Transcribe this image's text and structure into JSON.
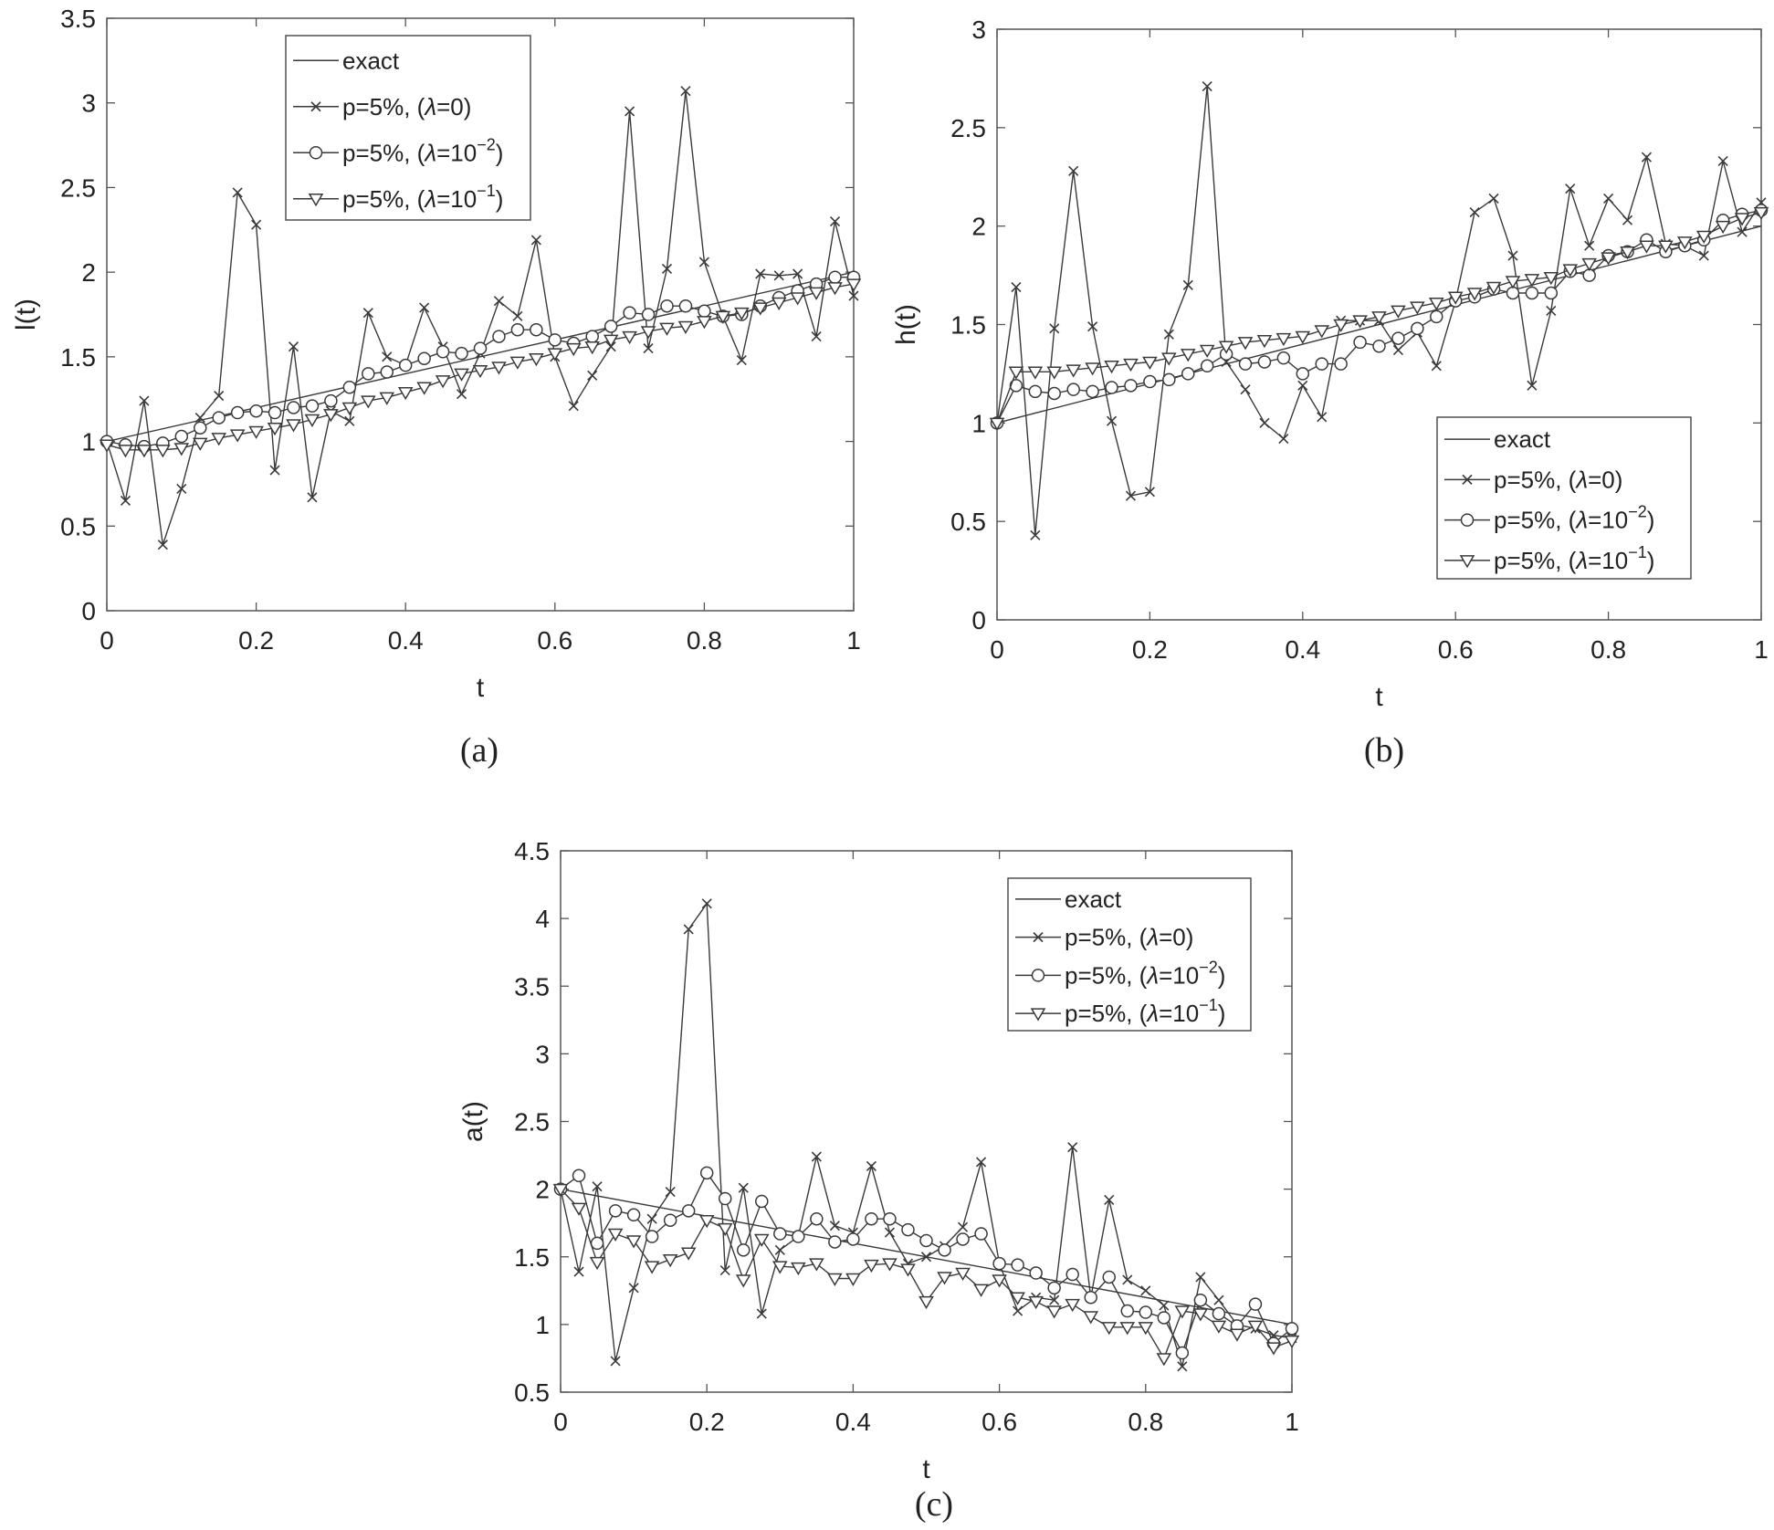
{
  "figure": {
    "captions": [
      "(a)",
      "(b)",
      "(c)"
    ]
  },
  "legend_symbols": {
    "lambda": "λ",
    "dash": "−"
  },
  "chart_data": [
    {
      "id": "a",
      "type": "line",
      "caption": "(a)",
      "xlabel": "t",
      "ylabel": "l(t)",
      "xlim": [
        0,
        1
      ],
      "ylim": [
        0,
        3.5
      ],
      "xticks": [
        0,
        0.2,
        0.4,
        0.6,
        0.8,
        1
      ],
      "xtick_labels": [
        "0",
        "0.2",
        "0.4",
        "0.6",
        "0.8",
        "1"
      ],
      "yticks": [
        0,
        0.5,
        1,
        1.5,
        2,
        2.5,
        3,
        3.5
      ],
      "ytick_labels": [
        "0",
        "0.5",
        "1",
        "1.5",
        "2",
        "2.5",
        "3",
        "3.5"
      ],
      "legend_position": "top-center",
      "series": [
        {
          "name": "exact",
          "label": "exact",
          "marker": "none",
          "x": [
            0,
            1
          ],
          "values": [
            1,
            2
          ]
        },
        {
          "name": "p=5%, (λ=0)",
          "label_pre": "p=5%, (",
          "label_mid": "=0)",
          "exp": "",
          "label_post": "",
          "marker": "x",
          "values": [
            1.0,
            0.65,
            1.24,
            0.39,
            0.72,
            1.14,
            1.27,
            2.47,
            2.28,
            0.83,
            1.56,
            0.67,
            1.18,
            1.12,
            1.76,
            1.5,
            1.45,
            1.79,
            1.56,
            1.28,
            1.52,
            1.83,
            1.74,
            2.19,
            1.5,
            1.21,
            1.39,
            1.56,
            2.95,
            1.55,
            2.02,
            3.07,
            2.06,
            1.74,
            1.48,
            1.99,
            1.98,
            1.99,
            1.62,
            2.3,
            1.86
          ]
        },
        {
          "name": "p=5%, (λ=10^-2)",
          "label_pre": "p=5%, (",
          "label_mid": "=10",
          "exp": "-2",
          "label_post": ")",
          "marker": "o",
          "values": [
            1.0,
            0.98,
            0.97,
            0.99,
            1.03,
            1.08,
            1.14,
            1.17,
            1.18,
            1.17,
            1.2,
            1.21,
            1.24,
            1.32,
            1.4,
            1.41,
            1.45,
            1.49,
            1.53,
            1.52,
            1.55,
            1.62,
            1.66,
            1.66,
            1.6,
            1.58,
            1.62,
            1.68,
            1.76,
            1.75,
            1.8,
            1.8,
            1.77,
            1.74,
            1.75,
            1.8,
            1.85,
            1.89,
            1.93,
            1.97,
            1.97
          ]
        },
        {
          "name": "p=5%, (λ=10^-1)",
          "label_pre": "p=5%, (",
          "label_mid": "=10",
          "exp": "-1",
          "label_post": ")",
          "marker": "v",
          "values": [
            0.98,
            0.95,
            0.95,
            0.95,
            0.96,
            0.99,
            1.02,
            1.04,
            1.06,
            1.08,
            1.1,
            1.13,
            1.16,
            1.2,
            1.24,
            1.26,
            1.29,
            1.32,
            1.36,
            1.4,
            1.42,
            1.44,
            1.47,
            1.49,
            1.52,
            1.55,
            1.56,
            1.6,
            1.62,
            1.65,
            1.67,
            1.68,
            1.71,
            1.74,
            1.76,
            1.79,
            1.82,
            1.85,
            1.88,
            1.91,
            1.93
          ]
        }
      ]
    },
    {
      "id": "b",
      "type": "line",
      "caption": "(b)",
      "xlabel": "t",
      "ylabel": "h(t)",
      "xlim": [
        0,
        1
      ],
      "ylim": [
        0,
        3
      ],
      "xticks": [
        0,
        0.2,
        0.4,
        0.6,
        0.8,
        1
      ],
      "xtick_labels": [
        "0",
        "0.2",
        "0.4",
        "0.6",
        "0.8",
        "1"
      ],
      "yticks": [
        0,
        0.5,
        1,
        1.5,
        2,
        2.5,
        3
      ],
      "ytick_labels": [
        "0",
        "0.5",
        "1",
        "1.5",
        "2",
        "2.5",
        "3"
      ],
      "legend_position": "bottom-right",
      "series": [
        {
          "name": "exact",
          "label": "exact",
          "marker": "none",
          "x": [
            0,
            1
          ],
          "values": [
            1,
            2
          ]
        },
        {
          "name": "p=5%, (λ=0)",
          "label_pre": "p=5%, (",
          "label_mid": "=0)",
          "exp": "",
          "label_post": "",
          "marker": "x",
          "values": [
            1.0,
            1.69,
            0.43,
            1.48,
            2.28,
            1.49,
            1.01,
            0.63,
            0.65,
            1.45,
            1.7,
            2.71,
            1.31,
            1.17,
            1.0,
            0.92,
            1.19,
            1.03,
            1.52,
            1.52,
            1.52,
            1.37,
            1.46,
            1.29,
            1.62,
            2.07,
            2.14,
            1.85,
            1.19,
            1.57,
            2.19,
            1.9,
            2.14,
            2.03,
            2.35,
            1.91,
            1.9,
            1.85,
            2.33,
            1.97,
            2.12
          ]
        },
        {
          "name": "p=5%, (λ=10^-2)",
          "label_pre": "p=5%, (",
          "label_mid": "=10",
          "exp": "-2",
          "label_post": ")",
          "marker": "o",
          "values": [
            1.0,
            1.19,
            1.16,
            1.15,
            1.17,
            1.16,
            1.18,
            1.19,
            1.21,
            1.22,
            1.25,
            1.29,
            1.35,
            1.3,
            1.31,
            1.33,
            1.25,
            1.3,
            1.3,
            1.41,
            1.39,
            1.43,
            1.48,
            1.54,
            1.62,
            1.64,
            1.68,
            1.66,
            1.66,
            1.66,
            1.77,
            1.75,
            1.85,
            1.87,
            1.93,
            1.87,
            1.9,
            1.93,
            2.03,
            2.06,
            2.08
          ]
        },
        {
          "name": "p=5%, (λ=10^-1)",
          "label_pre": "p=5%, (",
          "label_mid": "=10",
          "exp": "-1",
          "label_post": ")",
          "marker": "v",
          "values": [
            1.0,
            1.26,
            1.26,
            1.26,
            1.27,
            1.28,
            1.29,
            1.3,
            1.31,
            1.33,
            1.35,
            1.37,
            1.39,
            1.41,
            1.42,
            1.43,
            1.44,
            1.47,
            1.5,
            1.52,
            1.54,
            1.57,
            1.59,
            1.61,
            1.64,
            1.66,
            1.69,
            1.72,
            1.73,
            1.74,
            1.78,
            1.81,
            1.84,
            1.87,
            1.9,
            1.9,
            1.92,
            1.95,
            2.0,
            2.04,
            2.07
          ]
        }
      ]
    },
    {
      "id": "c",
      "type": "line",
      "caption": "(c)",
      "xlabel": "t",
      "ylabel": "a(t)",
      "xlim": [
        0,
        1
      ],
      "ylim": [
        0.5,
        4.5
      ],
      "xticks": [
        0,
        0.2,
        0.4,
        0.6,
        0.8,
        1
      ],
      "xtick_labels": [
        "0",
        "0.2",
        "0.4",
        "0.6",
        "0.8",
        "1"
      ],
      "yticks": [
        0.5,
        1,
        1.5,
        2,
        2.5,
        3,
        3.5,
        4,
        4.5
      ],
      "ytick_labels": [
        "0.5",
        "1",
        "1.5",
        "2",
        "2.5",
        "3",
        "3.5",
        "4",
        "4.5"
      ],
      "legend_position": "top-right",
      "series": [
        {
          "name": "exact",
          "label": "exact",
          "marker": "none",
          "x": [
            0,
            1
          ],
          "values": [
            2,
            1
          ]
        },
        {
          "name": "p=5%, (λ=0)",
          "label_pre": "p=5%, (",
          "label_mid": "=0)",
          "exp": "",
          "label_post": "",
          "marker": "x",
          "values": [
            2.0,
            1.39,
            2.02,
            0.73,
            1.27,
            1.78,
            1.98,
            3.92,
            4.11,
            1.4,
            2.01,
            1.08,
            1.55,
            1.65,
            2.24,
            1.73,
            1.68,
            2.17,
            1.68,
            1.45,
            1.5,
            1.58,
            1.72,
            2.2,
            1.45,
            1.1,
            1.2,
            1.18,
            2.31,
            1.2,
            1.92,
            1.33,
            1.25,
            1.14,
            0.69,
            1.35,
            1.18,
            1.0,
            0.97,
            0.92,
            0.9
          ]
        },
        {
          "name": "p=5%, (λ=10^-2)",
          "label_pre": "p=5%, (",
          "label_mid": "=10",
          "exp": "-2",
          "label_post": ")",
          "marker": "o",
          "values": [
            2.0,
            2.1,
            1.6,
            1.84,
            1.81,
            1.65,
            1.77,
            1.84,
            2.12,
            1.93,
            1.55,
            1.91,
            1.67,
            1.65,
            1.78,
            1.61,
            1.63,
            1.78,
            1.78,
            1.7,
            1.62,
            1.55,
            1.63,
            1.67,
            1.45,
            1.44,
            1.38,
            1.27,
            1.37,
            1.2,
            1.35,
            1.1,
            1.09,
            1.05,
            0.79,
            1.18,
            1.08,
            0.99,
            1.15,
            0.86,
            0.97
          ]
        },
        {
          "name": "p=5%, (λ=10^-1)",
          "label_pre": "p=5%, (",
          "label_mid": "=10",
          "exp": "-1",
          "label_post": ")",
          "marker": "v",
          "values": [
            2.0,
            1.86,
            1.46,
            1.67,
            1.62,
            1.43,
            1.48,
            1.53,
            1.77,
            1.71,
            1.33,
            1.63,
            1.43,
            1.42,
            1.45,
            1.34,
            1.34,
            1.44,
            1.45,
            1.41,
            1.17,
            1.35,
            1.38,
            1.26,
            1.33,
            1.2,
            1.17,
            1.1,
            1.15,
            1.06,
            0.98,
            0.98,
            0.98,
            0.75,
            1.1,
            1.08,
            0.99,
            0.93,
            0.99,
            0.83,
            0.88
          ]
        }
      ]
    }
  ]
}
